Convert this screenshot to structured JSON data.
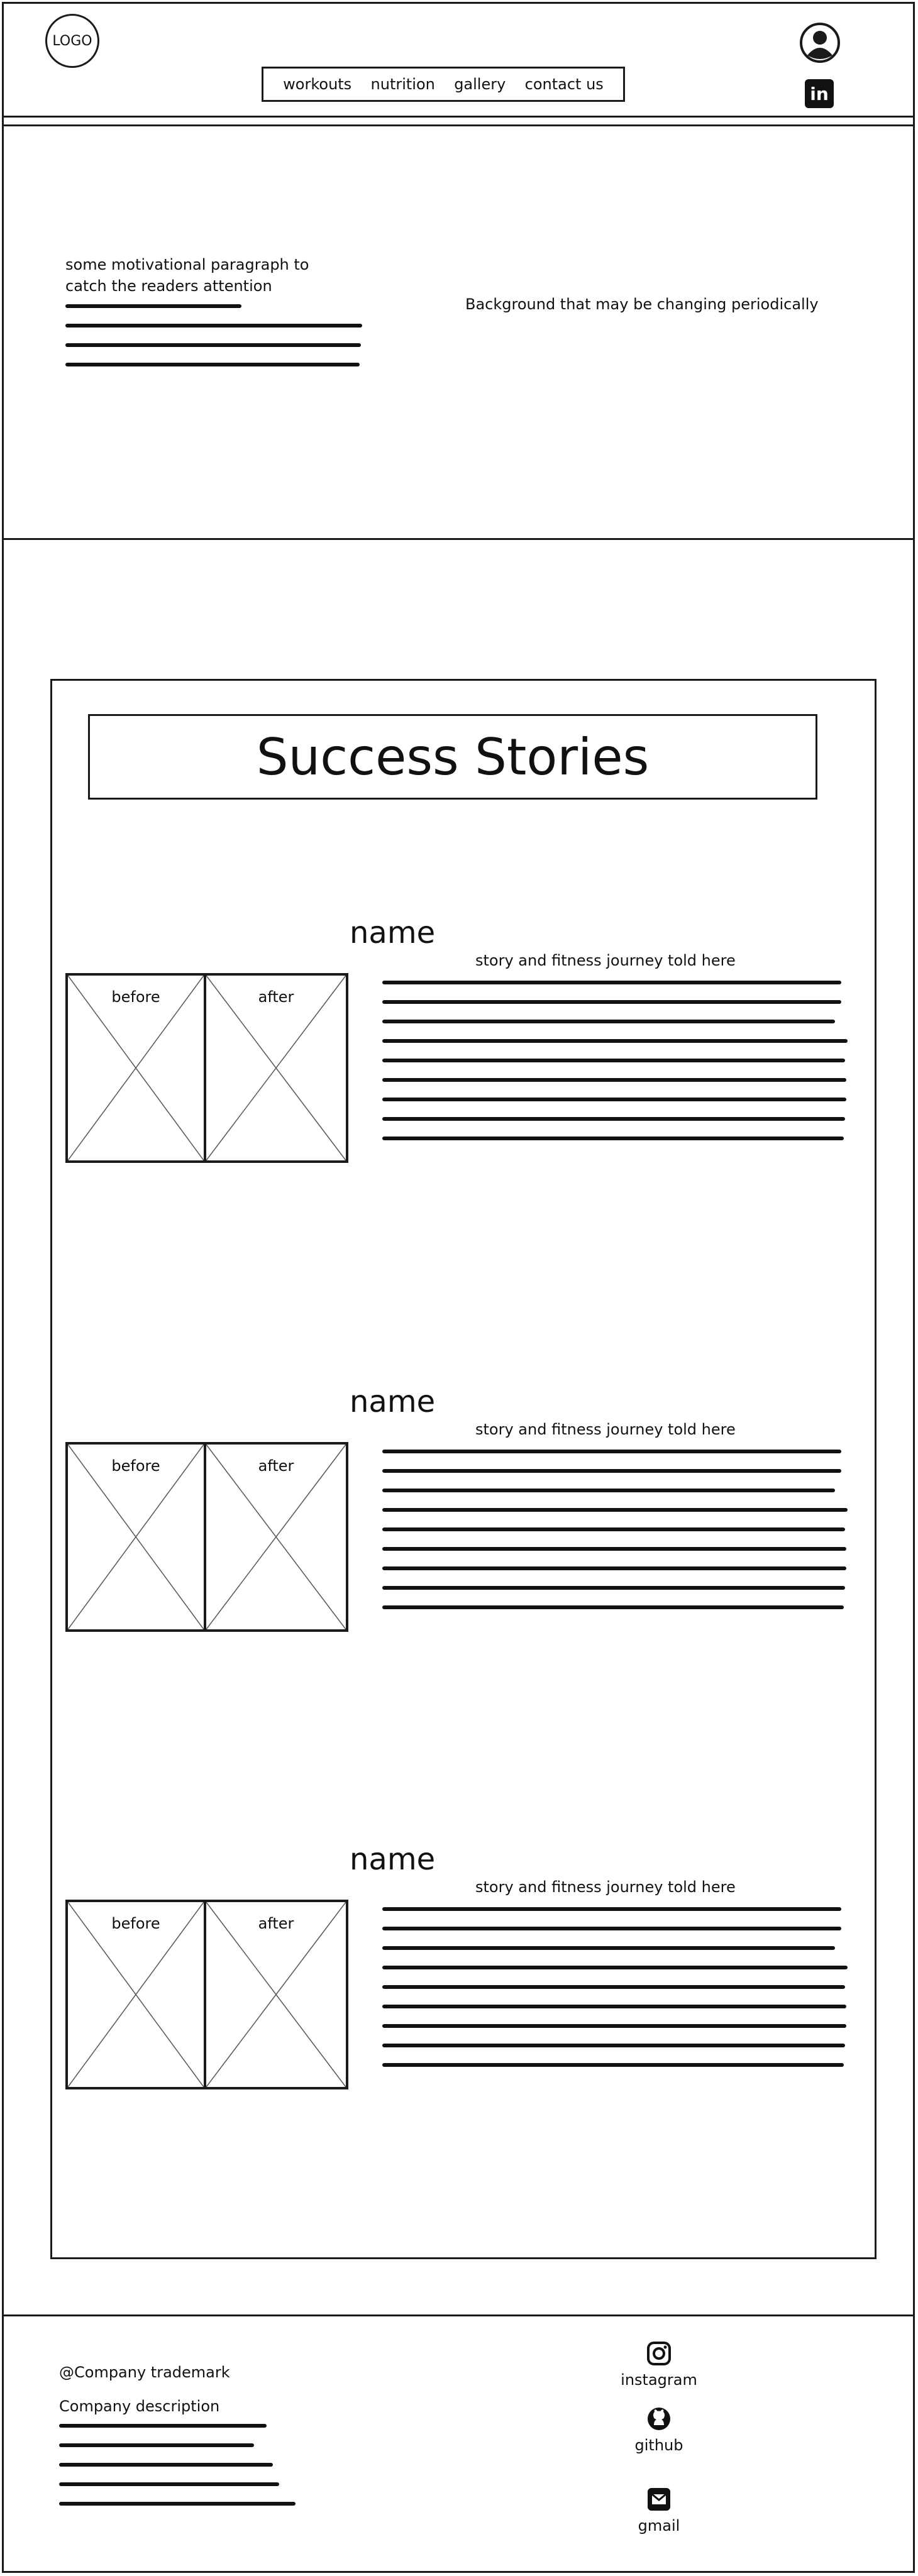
{
  "header": {
    "logo_text": "LOGO",
    "nav": [
      "workouts",
      "nutrition",
      "gallery",
      "contact us"
    ],
    "profile_icon": "user-profile-icon",
    "linkedin_icon": "linkedin-icon",
    "linkedin_glyph": "in"
  },
  "hero": {
    "paragraph": "some motivational paragraph to catch the readers attention",
    "background_note": "Background that may be changing periodically"
  },
  "stories": {
    "title": "Success Stories",
    "items": [
      {
        "name": "name",
        "subtitle": "story and fitness journey told here",
        "before_label": "before",
        "after_label": "after"
      },
      {
        "name": "name",
        "subtitle": "story and fitness journey told here",
        "before_label": "before",
        "after_label": "after"
      },
      {
        "name": "name",
        "subtitle": "story and fitness journey told here",
        "before_label": "before",
        "after_label": "after"
      }
    ]
  },
  "footer": {
    "trademark": "@Company trademark",
    "description_label": "Company description",
    "social": [
      {
        "label": "instagram",
        "icon": "instagram-icon"
      },
      {
        "label": "github",
        "icon": "github-icon"
      },
      {
        "label": "gmail",
        "icon": "gmail-icon"
      }
    ]
  },
  "colors": {
    "ink": "#1a1a1a",
    "background": "#ffffff"
  }
}
